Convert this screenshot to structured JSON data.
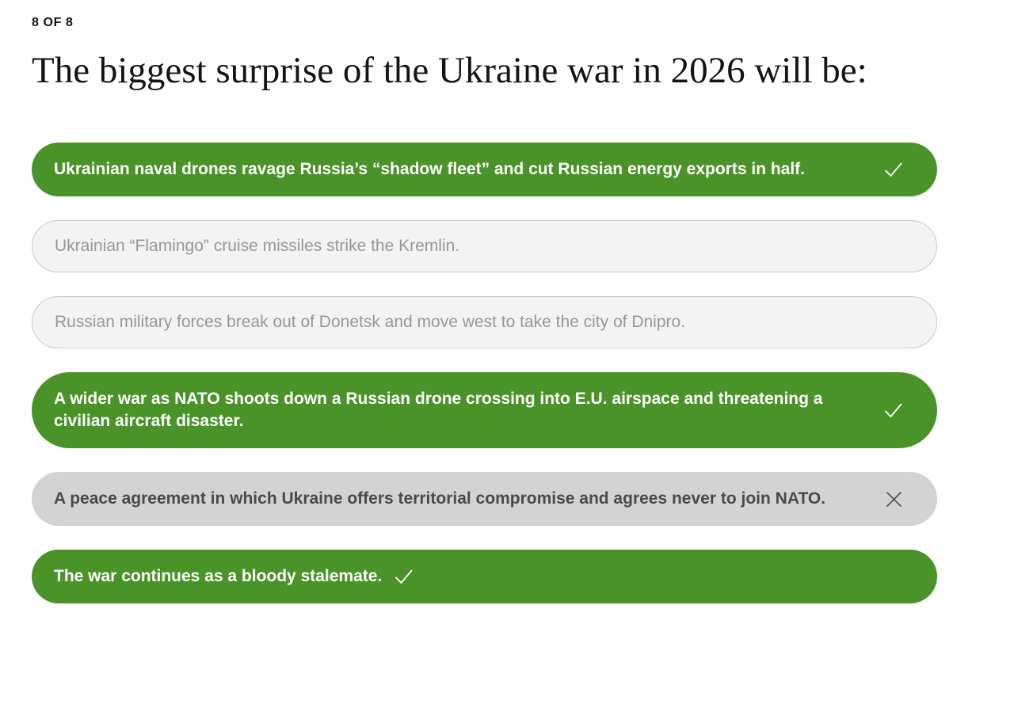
{
  "header": {
    "progress": "8 OF 8",
    "question": "The biggest surprise of the Ukraine war in 2026 will be:"
  },
  "colors": {
    "green": "#4a9328",
    "unselected_bg": "#f3f3f3",
    "unselected_border": "#c9c9c9",
    "unselected_text": "#979797",
    "rejected_bg": "#d3d3d3",
    "rejected_text": "#4a4a4a",
    "check_icon": "#ffffff",
    "x_icon": "#4f4f4f",
    "heading_text": "#141414"
  },
  "options": [
    {
      "label": "Ukrainian naval drones ravage Russia’s “shadow fleet” and cut Russian energy exports in half.",
      "state": "correct",
      "icon": "check",
      "icon_position": "right"
    },
    {
      "label": "Ukrainian “Flamingo” cruise missiles strike the Kremlin.",
      "state": "unselected",
      "icon": "none",
      "icon_position": "none"
    },
    {
      "label": "Russian military forces break out of Donetsk and move west to take the city of Dnipro.",
      "state": "unselected",
      "icon": "none",
      "icon_position": "none"
    },
    {
      "label": "A wider war as NATO shoots down a Russian drone crossing into E.U. airspace and threatening a civilian aircraft disaster.",
      "state": "correct",
      "icon": "check",
      "icon_position": "right"
    },
    {
      "label": "A peace agreement in which Ukraine offers territorial compromise and agrees never to join NATO.",
      "state": "rejected",
      "icon": "x",
      "icon_position": "right"
    },
    {
      "label": "The war continues as a bloody stalemate.",
      "state": "correct",
      "icon": "check",
      "icon_position": "inline"
    }
  ]
}
